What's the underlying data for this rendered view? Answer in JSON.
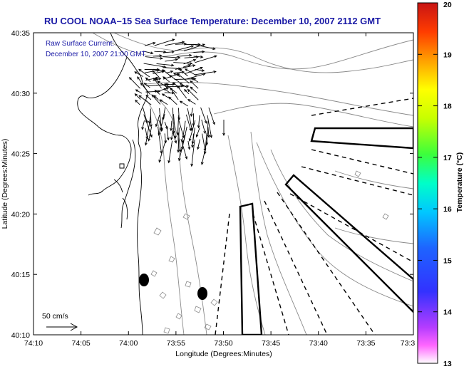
{
  "title": "RU COOL  NOAA–15  Sea Surface Temperature:  December 10, 2007 2112 GMT",
  "current_label_1": "Raw Surface Current:",
  "current_label_2": "December 10, 2007 21:00 GMT",
  "scale_label": "50 cm/s",
  "xlabel": "Longitude (Degrees:Minutes)",
  "ylabel": "Latitude (Degrees:Minutes)",
  "colorbar_label": "Temperature (°C)",
  "x_ticks": [
    "74:10",
    "74:05",
    "74:00",
    "73:55",
    "73:50",
    "73:45",
    "73:40",
    "73:35",
    "73:3"
  ],
  "y_ticks": [
    "40:35",
    "40:30",
    "40:25",
    "40:20",
    "40:15",
    "40:10"
  ],
  "colorbar_ticks": [
    "20",
    "19",
    "18",
    "17",
    "16",
    "15",
    "14",
    "13"
  ],
  "colorbar_range": [
    13,
    20
  ],
  "colors": {
    "title": "#1a1aa6",
    "coast": "#000000",
    "contour": "#8a8a8a"
  }
}
